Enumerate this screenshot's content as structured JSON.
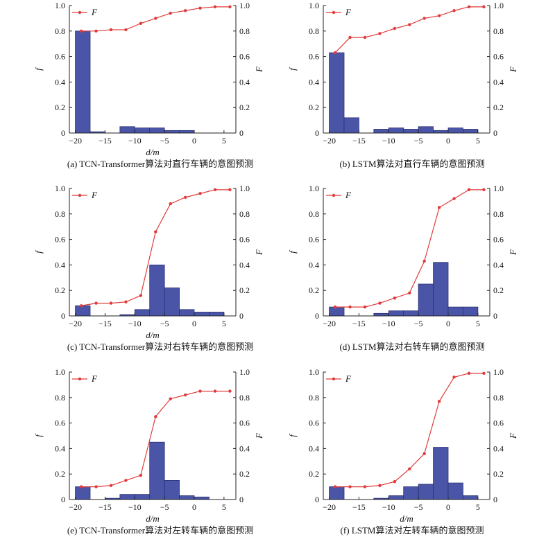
{
  "colors": {
    "bar_fill": "#4b55a8",
    "bar_stroke": "#2a3070",
    "line": "#e03a3a",
    "axis": "#222222"
  },
  "chart_data": [
    {
      "type": "bar+line",
      "caption": "(a) TCN-Transformer算法对直行车辆的意图预测",
      "xlabel": "d/m",
      "ylabel_left": "f",
      "ylabel_right": "F",
      "xlim": [
        -21,
        7
      ],
      "ylim": [
        0,
        1.0
      ],
      "xticks": [
        -20,
        -15,
        -10,
        -5,
        0,
        5
      ],
      "xtick_labels": [
        "−20",
        "−15",
        "−10",
        "−5",
        "0",
        "5"
      ],
      "yticks": [
        0,
        0.2,
        0.4,
        0.6,
        0.8,
        1.0
      ],
      "ytick_labels": [
        "0",
        "0.2",
        "0.4",
        "0.6",
        "0.8",
        "1.0"
      ],
      "bin_edges": [
        -20,
        -17.5,
        -15,
        -12.5,
        -10,
        -7.5,
        -5,
        -2.5,
        0,
        2.5,
        5
      ],
      "bar_values": [
        0.8,
        0.01,
        0,
        0.05,
        0.04,
        0.04,
        0.02,
        0.02,
        0,
        0
      ],
      "legend": [
        {
          "label": "F",
          "marker": "line-dot",
          "position": "top-left"
        }
      ],
      "cdf": {
        "name": "F",
        "x": [
          -19,
          -16.5,
          -14,
          -11.5,
          -9,
          -6.5,
          -4,
          -1.5,
          1,
          3.5,
          6
        ],
        "y": [
          0.8,
          0.8,
          0.81,
          0.81,
          0.86,
          0.9,
          0.94,
          0.96,
          0.98,
          0.99,
          0.99
        ]
      }
    },
    {
      "type": "bar+line",
      "caption": "(b) LSTM算法对直行车辆的意图预测",
      "xlabel": "",
      "ylabel_left": "f",
      "ylabel_right": "F",
      "xlim": [
        -21,
        7
      ],
      "ylim": [
        0,
        1.0
      ],
      "xticks": [
        -20,
        -15,
        -10,
        -5,
        0,
        5
      ],
      "xtick_labels": [
        "−20",
        "−15",
        "−10",
        "−5",
        "0",
        "5"
      ],
      "yticks": [
        0,
        0.2,
        0.4,
        0.6,
        0.8,
        1.0
      ],
      "ytick_labels": [
        "0",
        "0.2",
        "0.4",
        "0.6",
        "0.8",
        "1.0"
      ],
      "bin_edges": [
        -20,
        -17.5,
        -15,
        -12.5,
        -10,
        -7.5,
        -5,
        -2.5,
        0,
        2.5,
        5
      ],
      "bar_values": [
        0.63,
        0.12,
        0,
        0.03,
        0.04,
        0.03,
        0.05,
        0.02,
        0.04,
        0.03
      ],
      "legend": [
        {
          "label": "F",
          "marker": "line-dot",
          "position": "top-left"
        }
      ],
      "cdf": {
        "name": "F",
        "x": [
          -19,
          -16.5,
          -14,
          -11.5,
          -9,
          -6.5,
          -4,
          -1.5,
          1,
          3.5,
          6
        ],
        "y": [
          0.63,
          0.75,
          0.75,
          0.78,
          0.82,
          0.85,
          0.9,
          0.92,
          0.96,
          0.99,
          0.99
        ]
      }
    },
    {
      "type": "bar+line",
      "caption": "(c) TCN-Transformer算法对右转车辆的意图预测",
      "xlabel": "d/m",
      "ylabel_left": "f",
      "ylabel_right": "F",
      "xlim": [
        -21,
        7
      ],
      "ylim": [
        0,
        1.0
      ],
      "xticks": [
        -20,
        -15,
        -10,
        -5,
        0,
        5
      ],
      "xtick_labels": [
        "−20",
        "−15",
        "−10",
        "−5",
        "0",
        "5"
      ],
      "yticks": [
        0,
        0.2,
        0.4,
        0.6,
        0.8,
        1.0
      ],
      "ytick_labels": [
        "0",
        "0.2",
        "0.4",
        "0.6",
        "0.8",
        "1.0"
      ],
      "bin_edges": [
        -20,
        -17.5,
        -15,
        -12.5,
        -10,
        -7.5,
        -5,
        -2.5,
        0,
        2.5,
        5
      ],
      "bar_values": [
        0.08,
        0,
        0,
        0.01,
        0.05,
        0.4,
        0.22,
        0.05,
        0.03,
        0.03
      ],
      "legend": [
        {
          "label": "F",
          "marker": "line-dot",
          "position": "top-left"
        }
      ],
      "cdf": {
        "name": "F",
        "x": [
          -19,
          -16.5,
          -14,
          -11.5,
          -9,
          -6.5,
          -4,
          -1.5,
          1,
          3.5,
          6
        ],
        "y": [
          0.08,
          0.1,
          0.1,
          0.11,
          0.16,
          0.66,
          0.88,
          0.93,
          0.96,
          0.99,
          0.99
        ]
      }
    },
    {
      "type": "bar+line",
      "caption": "(d) LSTM算法对右转车辆的意图预测",
      "xlabel": "",
      "ylabel_left": "f",
      "ylabel_right": "F",
      "xlim": [
        -21,
        7
      ],
      "ylim": [
        0,
        1.0
      ],
      "xticks": [
        -20,
        -15,
        -10,
        -5,
        0,
        5
      ],
      "xtick_labels": [
        "−20",
        "−15",
        "−10",
        "−5",
        "0",
        "5"
      ],
      "yticks": [
        0,
        0.2,
        0.4,
        0.6,
        0.8,
        1.0
      ],
      "ytick_labels": [
        "0",
        "0.2",
        "0.4",
        "0.6",
        "0.8",
        "1.0"
      ],
      "bin_edges": [
        -20,
        -17.5,
        -15,
        -12.5,
        -10,
        -7.5,
        -5,
        -2.5,
        0,
        2.5,
        5
      ],
      "bar_values": [
        0.07,
        0,
        0,
        0.02,
        0.04,
        0.04,
        0.25,
        0.42,
        0.07,
        0.07
      ],
      "legend": [
        {
          "label": "F",
          "marker": "line-dot",
          "position": "top-left"
        }
      ],
      "cdf": {
        "name": "F",
        "x": [
          -19,
          -16.5,
          -14,
          -11.5,
          -9,
          -6.5,
          -4,
          -1.5,
          1,
          3.5,
          6
        ],
        "y": [
          0.07,
          0.07,
          0.07,
          0.1,
          0.14,
          0.18,
          0.43,
          0.85,
          0.92,
          0.99,
          0.99
        ]
      }
    },
    {
      "type": "bar+line",
      "caption": "(e) TCN-Transformer算法对左转车辆的意图预测",
      "xlabel": "d/m",
      "ylabel_left": "f",
      "ylabel_right": "F",
      "xlim": [
        -21,
        7
      ],
      "ylim": [
        0,
        1.0
      ],
      "xticks": [
        -20,
        -15,
        -10,
        -5,
        0,
        5
      ],
      "xtick_labels": [
        "−20",
        "−15",
        "−10",
        "−5",
        "0",
        "5"
      ],
      "yticks": [
        0,
        0.2,
        0.4,
        0.6,
        0.8,
        1.0
      ],
      "ytick_labels": [
        "0",
        "0.2",
        "0.4",
        "0.6",
        "0.8",
        "1.0"
      ],
      "bin_edges": [
        -20,
        -17.5,
        -15,
        -12.5,
        -10,
        -7.5,
        -5,
        -2.5,
        0,
        2.5,
        5
      ],
      "bar_values": [
        0.1,
        0,
        0.01,
        0.04,
        0.04,
        0.45,
        0.15,
        0.03,
        0.02,
        0
      ],
      "legend": [
        {
          "label": "F",
          "marker": "line-dot",
          "position": "top-left"
        }
      ],
      "cdf": {
        "name": "F",
        "x": [
          -19,
          -16.5,
          -14,
          -11.5,
          -9,
          -6.5,
          -4,
          -1.5,
          1,
          3.5,
          6
        ],
        "y": [
          0.1,
          0.1,
          0.11,
          0.15,
          0.19,
          0.65,
          0.79,
          0.82,
          0.85,
          0.85,
          0.85
        ]
      }
    },
    {
      "type": "bar+line",
      "caption": "(f) LSTM算法对左转车辆的意图预测",
      "xlabel": "d/m",
      "ylabel_left": "f",
      "ylabel_right": "F",
      "xlim": [
        -21,
        7
      ],
      "ylim": [
        0,
        1.0
      ],
      "xticks": [
        -20,
        -15,
        -10,
        -5,
        0,
        5
      ],
      "xtick_labels": [
        "−20",
        "−15",
        "−10",
        "−5",
        "0",
        "5"
      ],
      "yticks": [
        0,
        0.2,
        0.4,
        0.6,
        0.8,
        1.0
      ],
      "ytick_labels": [
        "0",
        "0.2",
        "0.4",
        "0.6",
        "0.8",
        "1.0"
      ],
      "bin_edges": [
        -20,
        -17.5,
        -15,
        -12.5,
        -10,
        -7.5,
        -5,
        -2.5,
        0,
        2.5,
        5
      ],
      "bar_values": [
        0.1,
        0,
        0,
        0.01,
        0.03,
        0.1,
        0.12,
        0.41,
        0.13,
        0.03
      ],
      "legend": [
        {
          "label": "F",
          "marker": "line-dot",
          "position": "top-left"
        }
      ],
      "cdf": {
        "name": "F",
        "x": [
          -19,
          -16.5,
          -14,
          -11.5,
          -9,
          -6.5,
          -4,
          -1.5,
          1,
          3.5,
          6
        ],
        "y": [
          0.1,
          0.1,
          0.1,
          0.11,
          0.14,
          0.24,
          0.36,
          0.77,
          0.96,
          0.99,
          0.99
        ]
      }
    }
  ]
}
